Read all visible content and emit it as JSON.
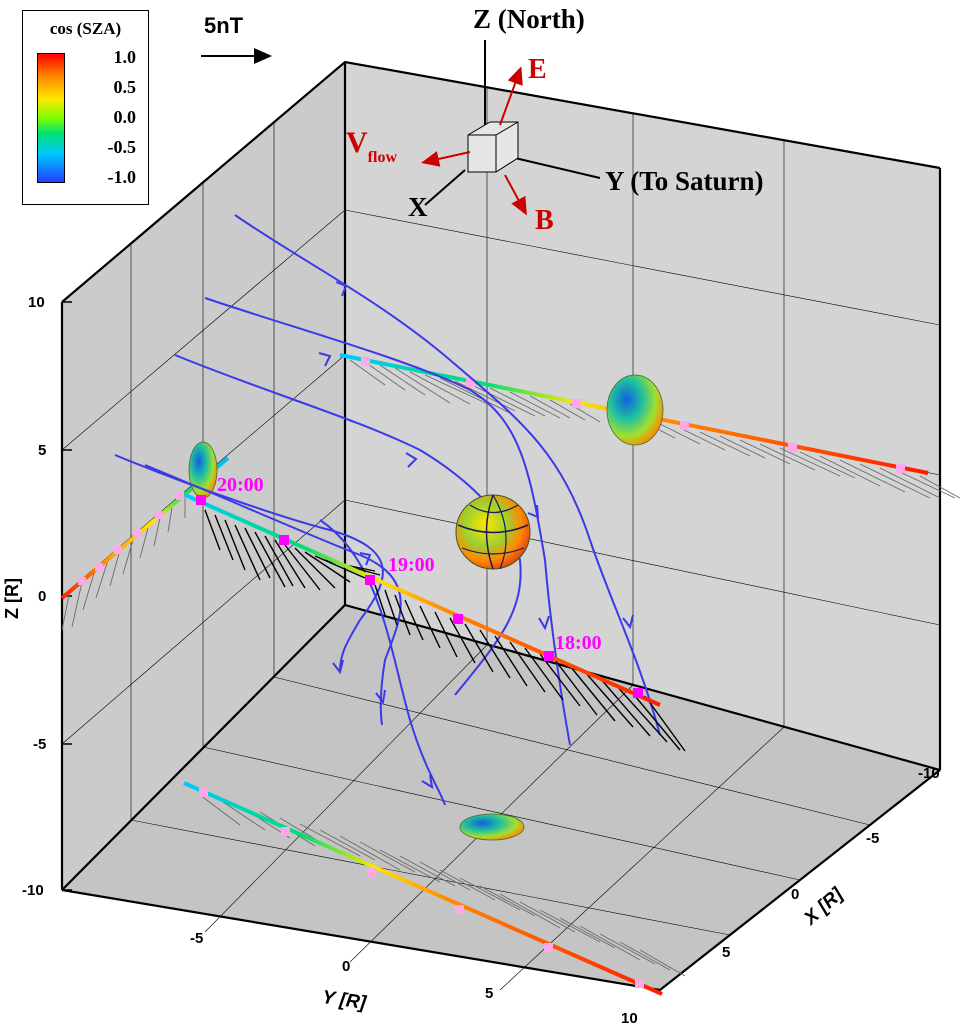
{
  "legend": {
    "title": "cos (SZA)",
    "ticks": [
      "1.0",
      "0.5",
      "0.0",
      "-0.5",
      "-1.0"
    ],
    "colors": [
      "#ff0000",
      "#ff8a00",
      "#ffe600",
      "#7fff00",
      "#00e070",
      "#00c8ff",
      "#2040ff"
    ]
  },
  "scale": {
    "label": "5nT"
  },
  "triad": {
    "z_label": "Z (North)",
    "y_label": "Y (To Saturn)",
    "x_label": "X",
    "e_label": "E",
    "b_label": "B",
    "v_label": "V",
    "v_sub": "flow",
    "accent_color": "#cc0000"
  },
  "axes": {
    "z_label": "Z [R]",
    "y_label": "Y [R]",
    "x_label": "X [R]",
    "z_ticks": [
      "10",
      "5",
      "0",
      "-5",
      "-10"
    ],
    "y_ticks": [
      "-5",
      "0",
      "5",
      "10"
    ],
    "x_ticks": [
      "-10",
      "-5",
      "0",
      "5"
    ]
  },
  "time_labels": [
    "20:00",
    "19:00",
    "18:00"
  ],
  "colors": {
    "field_lines": "#3a3ae8",
    "time_marker": "#ff00ff",
    "sample_marker": "#ffa8e8",
    "vectors_main": "#000000",
    "vectors_projection": "#6a6a6a",
    "wall": "#d4d4d4",
    "floor": "#c4c4c4"
  }
}
